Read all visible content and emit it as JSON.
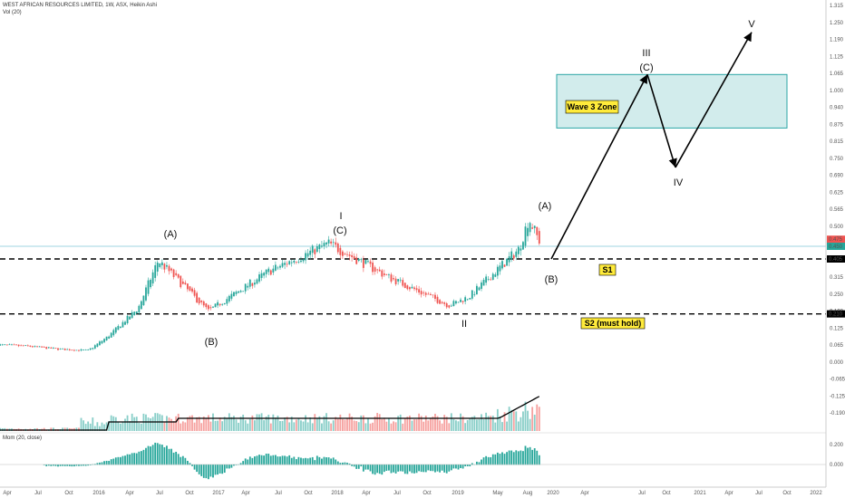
{
  "header": {
    "title": "WEST AFRICAN RESOURCES LIMITED, 1W, ASX, Heikin Ashi",
    "volume_label": "Vol (20)",
    "momentum_label": "Mom (20, close)"
  },
  "colors": {
    "up": "#26a69a",
    "down": "#ef5350",
    "level_line": "#000000",
    "zone_fill": "#d2ecec",
    "zone_border": "#2aa5a5",
    "label_bg": "#ffeb3b",
    "current_price_line": "#7fc8d8"
  },
  "chart_data": {
    "type": "candlestick",
    "price_axis": {
      "ticks": [
        "1.315",
        "1.250",
        "1.190",
        "1.125",
        "1.065",
        "1.000",
        "0.940",
        "0.875",
        "0.815",
        "0.750",
        "0.690",
        "0.625",
        "0.565",
        "0.500",
        "0.440",
        "0.375",
        "0.315",
        "0.250",
        "0.190",
        "0.125",
        "0.065",
        "0.000",
        "-0.065",
        "-0.125",
        "-0.190"
      ],
      "badges": [
        {
          "value": "0.475",
          "color": "#ef5350"
        },
        {
          "value": "0.450",
          "color": "#26a69a"
        },
        {
          "value": "0.405",
          "color": "#000000"
        },
        {
          "value": "0.210",
          "color": "#000000"
        }
      ]
    },
    "momentum_axis": {
      "ticks": [
        "0.200",
        "0.000"
      ]
    },
    "time_axis": {
      "labels": [
        "Apr",
        "Jul",
        "Oct",
        "2016",
        "Apr",
        "Jul",
        "Oct",
        "2017",
        "Apr",
        "Jul",
        "Oct",
        "2018",
        "Apr",
        "Jul",
        "Oct",
        "2019",
        "May",
        "Aug",
        "2020",
        "Apr",
        "Jul",
        "Oct",
        "2021",
        "Apr",
        "Jul",
        "Oct",
        "2022"
      ]
    },
    "levels": [
      {
        "name": "S1",
        "value": 0.405
      },
      {
        "name": "S2 (must hold)",
        "value": 0.21
      }
    ],
    "zone": {
      "label": "Wave 3 Zone",
      "from": 0.87,
      "to": 1.06
    },
    "wave_labels": [
      "(A)",
      "(B)",
      "I",
      "(C)",
      "II",
      "(A)",
      "(B)",
      "III",
      "(C)",
      "IV",
      "V"
    ],
    "price_path": [
      {
        "date": "2015-03",
        "price": 0.1
      },
      {
        "date": "2015-06",
        "price": 0.095
      },
      {
        "date": "2015-09",
        "price": 0.085
      },
      {
        "date": "2015-12",
        "price": 0.08
      },
      {
        "date": "2016-02",
        "price": 0.13
      },
      {
        "date": "2016-05",
        "price": 0.23
      },
      {
        "date": "2016-07",
        "price": 0.4
      },
      {
        "date": "2016-12",
        "price": 0.22
      },
      {
        "date": "2017-06",
        "price": 0.36
      },
      {
        "date": "2017-12",
        "price": 0.46
      },
      {
        "date": "2018-06",
        "price": 0.34
      },
      {
        "date": "2018-12",
        "price": 0.24
      },
      {
        "date": "2019-02",
        "price": 0.27
      },
      {
        "date": "2019-07",
        "price": 0.44
      },
      {
        "date": "2019-08",
        "price": 0.55
      },
      {
        "date": "2019-09",
        "price": 0.47
      }
    ],
    "projection": [
      {
        "label": "(B)",
        "price": 0.405
      },
      {
        "label": "III",
        "price": 1.06
      },
      {
        "label": "IV",
        "price": 0.73
      },
      {
        "label": "V",
        "price": 1.21
      }
    ]
  }
}
